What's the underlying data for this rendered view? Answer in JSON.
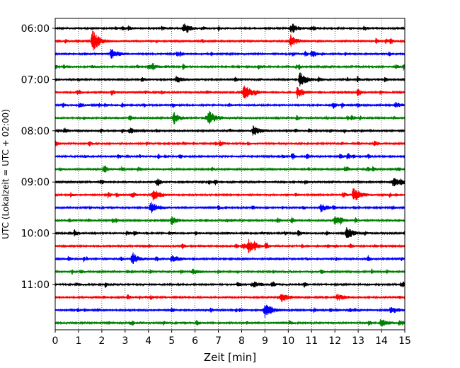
{
  "chart_data": {
    "type": "line",
    "subtype": "helicorder-seismogram",
    "xlabel": "Zeit  [min]",
    "ylabel": "UTC (Lokalzeit = UTC + 02:00)",
    "xlim": [
      0,
      15
    ],
    "x_ticks": [
      "0",
      "1",
      "2",
      "3",
      "4",
      "5",
      "6",
      "7",
      "8",
      "9",
      "10",
      "11",
      "12",
      "13",
      "14",
      "15"
    ],
    "row_interval_min": 15,
    "row_count": 24,
    "first_row_utc": "06:00",
    "row_colors": [
      "#000000",
      "#ff0000",
      "#0000ff",
      "#008000"
    ],
    "y_ticks": [
      {
        "label": "06:00",
        "row": 0
      },
      {
        "label": "07:00",
        "row": 4
      },
      {
        "label": "08:00",
        "row": 8
      },
      {
        "label": "09:00",
        "row": 12
      },
      {
        "label": "10:00",
        "row": 16
      },
      {
        "label": "11:00",
        "row": 20
      }
    ],
    "grid": {
      "x": true,
      "style": "dotted"
    },
    "events": [
      {
        "row": 0,
        "x": 10.1,
        "amp": 0.35
      },
      {
        "row": 0,
        "x": 5.5,
        "amp": 0.2
      },
      {
        "row": 1,
        "x": 1.6,
        "amp": 0.9
      },
      {
        "row": 1,
        "x": 10.1,
        "amp": 0.4
      },
      {
        "row": 2,
        "x": 2.4,
        "amp": 0.4
      },
      {
        "row": 3,
        "x": 4.0,
        "amp": 0.2
      },
      {
        "row": 4,
        "x": 10.5,
        "amp": 0.55
      },
      {
        "row": 4,
        "x": 5.2,
        "amp": 0.25
      },
      {
        "row": 5,
        "x": 8.1,
        "amp": 0.6
      },
      {
        "row": 5,
        "x": 10.4,
        "amp": 0.35
      },
      {
        "row": 6,
        "x": 14.6,
        "amp": 0.2
      },
      {
        "row": 7,
        "x": 6.6,
        "amp": 0.55
      },
      {
        "row": 7,
        "x": 5.1,
        "amp": 0.3
      },
      {
        "row": 8,
        "x": 8.5,
        "amp": 0.4
      },
      {
        "row": 8,
        "x": 3.2,
        "amp": 0.2
      },
      {
        "row": 12,
        "x": 14.5,
        "amp": 0.35
      },
      {
        "row": 13,
        "x": 4.2,
        "amp": 0.45
      },
      {
        "row": 13,
        "x": 12.8,
        "amp": 0.6
      },
      {
        "row": 14,
        "x": 4.1,
        "amp": 0.45
      },
      {
        "row": 14,
        "x": 11.4,
        "amp": 0.3
      },
      {
        "row": 15,
        "x": 12.0,
        "amp": 0.35
      },
      {
        "row": 15,
        "x": 5.0,
        "amp": 0.25
      },
      {
        "row": 16,
        "x": 12.5,
        "amp": 0.5
      },
      {
        "row": 17,
        "x": 8.3,
        "amp": 0.5
      },
      {
        "row": 18,
        "x": 3.3,
        "amp": 0.35
      },
      {
        "row": 18,
        "x": 5.0,
        "amp": 0.3
      },
      {
        "row": 19,
        "x": 5.9,
        "amp": 0.2
      },
      {
        "row": 20,
        "x": 8.5,
        "amp": 0.2
      },
      {
        "row": 21,
        "x": 9.7,
        "amp": 0.35
      },
      {
        "row": 21,
        "x": 12.1,
        "amp": 0.25
      },
      {
        "row": 22,
        "x": 9.0,
        "amp": 0.6
      },
      {
        "row": 22,
        "x": 14.4,
        "amp": 0.3
      },
      {
        "row": 23,
        "x": 14.0,
        "amp": 0.25
      }
    ]
  }
}
